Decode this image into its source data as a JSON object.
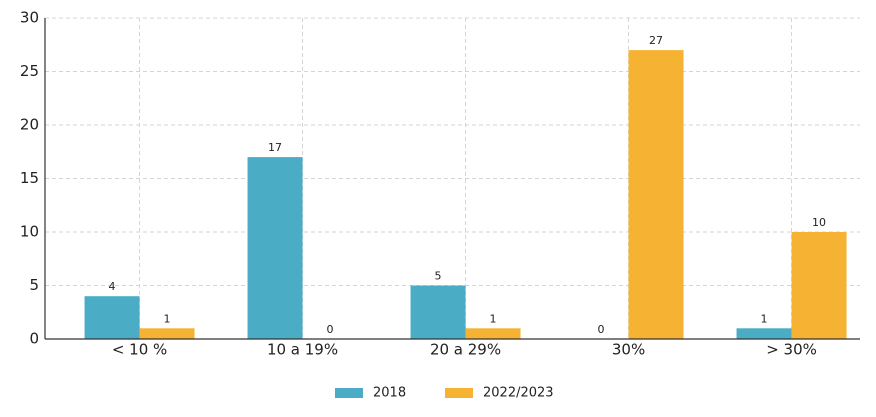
{
  "chart_data": {
    "type": "bar",
    "categories": [
      "< 10 %",
      "10 a 19%",
      "20 a 29%",
      "30%",
      "> 30%"
    ],
    "series": [
      {
        "name": "2018",
        "color": "#4bacc6",
        "values": [
          4,
          17,
          5,
          0,
          1
        ]
      },
      {
        "name": "2022/2023",
        "color": "#f6b333",
        "values": [
          1,
          0,
          1,
          27,
          10
        ]
      }
    ],
    "ylim": [
      0,
      30
    ],
    "yticks": [
      0,
      5,
      10,
      15,
      20,
      25,
      30
    ],
    "grid": true,
    "legend": "bottom"
  }
}
